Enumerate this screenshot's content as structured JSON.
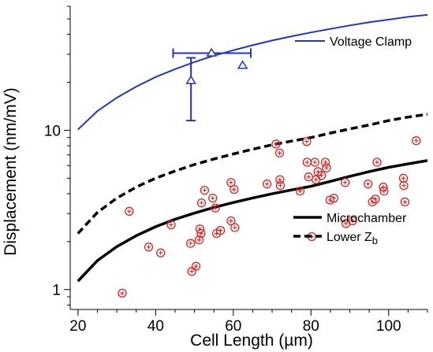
{
  "chart_data": {
    "type": "scatter",
    "xlabel": "Cell Length (µm)",
    "ylabel": "Displacement (nm/mV)",
    "xlim": [
      18,
      110
    ],
    "ylim": [
      0.75,
      60
    ],
    "yscale": "log",
    "x_ticks": [
      20,
      40,
      60,
      80,
      100
    ],
    "y_ticks": [
      {
        "value": 1,
        "label": "1"
      },
      {
        "value": 10,
        "label": "10"
      }
    ],
    "grid": false,
    "legend_placement": "right",
    "series": [
      {
        "name": "Voltage Clamp",
        "kind": "line",
        "color": "#2233cc",
        "style": "solid",
        "x": [
          20,
          25,
          30,
          35,
          40,
          45,
          50,
          55,
          60,
          65,
          70,
          75,
          80,
          85,
          90,
          95,
          100,
          105,
          110
        ],
        "y": [
          10.1,
          13.2,
          16.0,
          18.8,
          21.6,
          24.2,
          26.8,
          29.4,
          31.8,
          34.2,
          36.6,
          38.9,
          41.1,
          43.3,
          45.5,
          47.6,
          49.5,
          51.5,
          53.0
        ]
      },
      {
        "name": "Microchamber",
        "kind": "line",
        "color": "#000000",
        "style": "solid",
        "x": [
          20,
          25,
          30,
          35,
          40,
          45,
          50,
          55,
          60,
          65,
          70,
          75,
          80,
          85,
          90,
          95,
          100,
          105,
          110
        ],
        "y": [
          1.13,
          1.52,
          1.86,
          2.18,
          2.48,
          2.76,
          3.02,
          3.28,
          3.52,
          3.76,
          3.99,
          4.22,
          4.45,
          4.78,
          5.14,
          5.5,
          5.85,
          6.15,
          6.45
        ]
      },
      {
        "name": "Lower Z_b",
        "kind": "line",
        "color": "#000000",
        "style": "dashed",
        "x": [
          20,
          25,
          30,
          35,
          40,
          45,
          50,
          55,
          60,
          65,
          70,
          75,
          80,
          85,
          90,
          95,
          100,
          105,
          110
        ],
        "y": [
          2.25,
          3.05,
          3.75,
          4.4,
          5.0,
          5.55,
          6.1,
          6.6,
          7.1,
          7.6,
          8.1,
          8.55,
          9.0,
          9.6,
          10.2,
          10.8,
          11.5,
          12.1,
          12.6
        ]
      },
      {
        "kind": "scatter",
        "marker": "circle-plus",
        "color": "#e02020",
        "points": [
          {
            "x": 31.4,
            "y": 0.95
          },
          {
            "x": 33.2,
            "y": 3.1
          },
          {
            "x": 38.2,
            "y": 1.85
          },
          {
            "x": 41.3,
            "y": 1.7
          },
          {
            "x": 44.0,
            "y": 2.55
          },
          {
            "x": 49.0,
            "y": 1.95
          },
          {
            "x": 49.3,
            "y": 1.3
          },
          {
            "x": 50.4,
            "y": 1.4
          },
          {
            "x": 51.4,
            "y": 2.4
          },
          {
            "x": 51.2,
            "y": 2.05
          },
          {
            "x": 51.7,
            "y": 2.25
          },
          {
            "x": 51.8,
            "y": 3.5
          },
          {
            "x": 52.6,
            "y": 4.2
          },
          {
            "x": 54.7,
            "y": 3.75
          },
          {
            "x": 55.4,
            "y": 3.25
          },
          {
            "x": 55.7,
            "y": 2.25
          },
          {
            "x": 56.7,
            "y": 2.35
          },
          {
            "x": 59.4,
            "y": 4.7
          },
          {
            "x": 59.4,
            "y": 2.7
          },
          {
            "x": 60.2,
            "y": 4.25
          },
          {
            "x": 60.4,
            "y": 2.45
          },
          {
            "x": 68.7,
            "y": 4.6
          },
          {
            "x": 71.0,
            "y": 8.2
          },
          {
            "x": 71.9,
            "y": 7.2
          },
          {
            "x": 72.0,
            "y": 4.9
          },
          {
            "x": 72.1,
            "y": 4.5
          },
          {
            "x": 77.2,
            "y": 4.15
          },
          {
            "x": 78.9,
            "y": 8.5
          },
          {
            "x": 79.0,
            "y": 6.3
          },
          {
            "x": 79.4,
            "y": 5.1
          },
          {
            "x": 80.2,
            "y": 2.15
          },
          {
            "x": 81.0,
            "y": 6.3
          },
          {
            "x": 81.3,
            "y": 4.9
          },
          {
            "x": 81.8,
            "y": 5.5
          },
          {
            "x": 82.7,
            "y": 5.2
          },
          {
            "x": 83.7,
            "y": 6.3
          },
          {
            "x": 84.0,
            "y": 5.8
          },
          {
            "x": 84.9,
            "y": 3.65
          },
          {
            "x": 85.9,
            "y": 3.75
          },
          {
            "x": 88.8,
            "y": 4.7
          },
          {
            "x": 89.0,
            "y": 2.6
          },
          {
            "x": 90.7,
            "y": 2.7
          },
          {
            "x": 94.7,
            "y": 4.6
          },
          {
            "x": 95.8,
            "y": 3.55
          },
          {
            "x": 96.6,
            "y": 3.7
          },
          {
            "x": 97.0,
            "y": 6.3
          },
          {
            "x": 98.6,
            "y": 4.4
          },
          {
            "x": 98.8,
            "y": 4.15
          },
          {
            "x": 103.8,
            "y": 5.0
          },
          {
            "x": 103.9,
            "y": 4.5
          },
          {
            "x": 104.2,
            "y": 3.55
          },
          {
            "x": 107.1,
            "y": 8.6
          }
        ]
      },
      {
        "kind": "scatter-errorbars",
        "marker": "open-triangle",
        "color": "#2233cc",
        "points": [
          {
            "x": 49.1,
            "y": 20.5,
            "ylow": 11.5,
            "yhigh": 28.5
          },
          {
            "x": 54.4,
            "y": 30.5,
            "xlow": 44.5,
            "xhigh": 64.5
          },
          {
            "x": 62.4,
            "y": 25.5
          }
        ]
      }
    ]
  },
  "legend": {
    "voltage_clamp": "Voltage Clamp",
    "microchamber": "Microchamber",
    "lower_zb_main": "Lower Z",
    "lower_zb_sub": "b"
  }
}
